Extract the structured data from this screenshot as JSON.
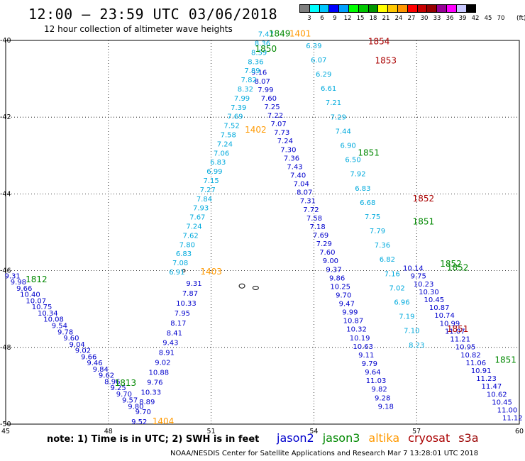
{
  "header": {
    "title": "12:00 – 23:59 UTC 03/06/2018",
    "subtitle": "12 hour collection of altimeter wave heights"
  },
  "colorbar": {
    "unit": "(ft)",
    "colors": [
      "#7f7f7f",
      "#00ffff",
      "#00c8ff",
      "#0000ff",
      "#00a0ff",
      "#00ff00",
      "#00c800",
      "#009600",
      "#ffff00",
      "#ffc800",
      "#ff9600",
      "#ff0000",
      "#c80000",
      "#960000",
      "#960096",
      "#ff00ff",
      "#c8c8ff",
      "#000000"
    ],
    "labels": [
      "3",
      "6",
      "9",
      "12",
      "15",
      "18",
      "21",
      "24",
      "27",
      "30",
      "33",
      "36",
      "39",
      "42",
      "45",
      "70"
    ]
  },
  "colors": {
    "jason2": "#0000cc",
    "jason3": "#008800",
    "altika": "#ff9900",
    "cryosat": "#aa0000",
    "s3a": "#990000",
    "cyan_track": "#00aadd"
  },
  "axes": {
    "lon_labels": [
      "45",
      "48",
      "51",
      "54",
      "57",
      "60"
    ],
    "lat_labels": [
      "-40",
      "-42",
      "-44",
      "-46",
      "-48",
      "-50"
    ]
  },
  "passes": [
    {
      "label": "1849",
      "sat": "jason3",
      "lon": 53.0,
      "lat": -39.9
    },
    {
      "label": "1401",
      "sat": "altika",
      "lon": 53.6,
      "lat": -39.9
    },
    {
      "label": "1850",
      "sat": "jason3",
      "lon": 52.6,
      "lat": -40.3
    },
    {
      "label": "1854",
      "sat": "cryosat",
      "lon": 55.9,
      "lat": -40.1
    },
    {
      "label": "1853",
      "sat": "cryosat",
      "lon": 56.1,
      "lat": -40.6
    },
    {
      "label": "1402",
      "sat": "altika",
      "lon": 52.3,
      "lat": -42.4
    },
    {
      "label": "1851",
      "sat": "jason3",
      "lon": 55.6,
      "lat": -43.0
    },
    {
      "label": "1852",
      "sat": "cryosat",
      "lon": 57.2,
      "lat": -44.2
    },
    {
      "label": "1851",
      "sat": "jason3",
      "lon": 57.2,
      "lat": -44.8
    },
    {
      "label": "1852",
      "sat": "jason3",
      "lon": 58.0,
      "lat": -45.9
    },
    {
      "label": "1852",
      "sat": "jason3",
      "lon": 58.2,
      "lat": -46.0
    },
    {
      "label": "1403",
      "sat": "altika",
      "lon": 51.0,
      "lat": -46.1
    },
    {
      "label": "1851",
      "sat": "cryosat",
      "lon": 58.2,
      "lat": -47.6
    },
    {
      "label": "1812",
      "sat": "jason3",
      "lon": 45.9,
      "lat": -46.3
    },
    {
      "label": "1813",
      "sat": "jason3",
      "lon": 48.5,
      "lat": -49.0
    },
    {
      "label": "1404",
      "sat": "altika",
      "lon": 49.6,
      "lat": -50.0
    },
    {
      "label": "1851",
      "sat": "jason3",
      "lon": 59.6,
      "lat": -48.4
    }
  ],
  "tracks": [
    {
      "sat": "jason2",
      "values": [
        "9.16",
        "8.07",
        "7.99",
        "7.60",
        "7.25",
        "7.22",
        "7.07",
        "7.73",
        "7.24",
        "7.30",
        "7.36",
        "7.43",
        "7.40",
        "7.04",
        "8.07",
        "7.31",
        "7.72",
        "7.58",
        "7.18",
        "7.69",
        "7.29",
        "7.60",
        "9.00",
        "9.37",
        "9.86",
        "10.25",
        "9.70",
        "9.47",
        "9.99",
        "10.87",
        "10.32",
        "10.19",
        "10.63",
        "9.11",
        "9.79",
        "9.64",
        "11.03",
        "9.82",
        "9.28",
        "9.18"
      ]
    },
    {
      "sat": "cyan",
      "values": [
        "7.47",
        "8.36",
        "8.59",
        "8.36",
        "7.89",
        "7.82",
        "8.32",
        "7.99",
        "7.39",
        "7.69",
        "7.52",
        "7.58",
        "7.24",
        "7.06",
        "6.83",
        "6.99",
        "7.15",
        "7.27",
        "7.84",
        "7.93",
        "7.67",
        "7.24",
        "7.62",
        "7.80",
        "6.83",
        "7.08",
        "6.91"
      ]
    },
    {
      "sat": "jason2b",
      "values": [
        "9.31",
        "7.87",
        "10.33",
        "7.95",
        "8.17",
        "8.41",
        "9.43",
        "8.91",
        "9.02",
        "10.88",
        "9.76",
        "10.33",
        "8.89",
        "9.70",
        "9.52"
      ]
    },
    {
      "sat": "cyan_b",
      "values": [
        "6.39",
        "6.07",
        "6.29",
        "6.61",
        "7.21",
        "7.29",
        "7.44",
        "6.90",
        "6.50",
        "7.92",
        "6.83",
        "6.68",
        "7.75",
        "7.79",
        "7.36",
        "6.82",
        "7.16",
        "7.02",
        "6.96",
        "7.19",
        "7.10",
        "8.23"
      ]
    },
    {
      "sat": "sw",
      "values": [
        "9.31",
        "9.98",
        "9.66",
        "10.40",
        "10.07",
        "10.75",
        "10.34",
        "10.08",
        "9.54",
        "9.78",
        "9.60",
        "9.04",
        "9.02",
        "9.66",
        "9.46",
        "9.84",
        "9.62",
        "8.96",
        "9.25",
        "9.70",
        "9.57",
        "9.80"
      ]
    },
    {
      "sat": "se",
      "values": [
        "10.14",
        "9.75",
        "10.23",
        "10.30",
        "10.45",
        "10.87",
        "10.74",
        "10.99",
        "11.07",
        "11.21",
        "10.95",
        "10.82",
        "11.06",
        "10.91",
        "11.23",
        "11.47",
        "10.62",
        "10.45",
        "11.00",
        "11.12"
      ]
    }
  ],
  "note": "note:  1) Time is in UTC;  2) SWH is in feet",
  "legend": [
    {
      "name": "jason2",
      "color": "#0000cc"
    },
    {
      "name": "jason3",
      "color": "#008800"
    },
    {
      "name": "altika",
      "color": "#ff9900"
    },
    {
      "name": "cryosat",
      "color": "#aa0000"
    },
    {
      "name": "s3a",
      "color": "#990000"
    }
  ],
  "footer": "NOAA/NESDIS Center for Satellite Applications and Research   Mar  7 13:28:01 UTC 2018"
}
